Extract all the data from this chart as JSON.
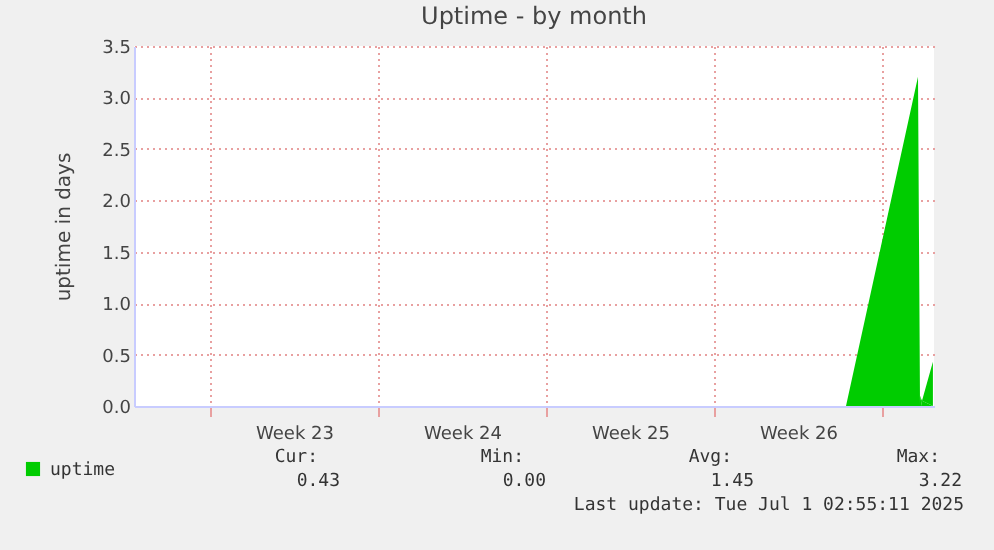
{
  "chart_data": {
    "type": "area",
    "title": "Uptime - by month",
    "ylabel": "uptime in days",
    "x": [
      "2025-06-27T12:00",
      "2025-06-30T12:00",
      "2025-06-30T14:00",
      "2025-06-30T16:00",
      "2025-07-01T02:55"
    ],
    "series": [
      {
        "name": "uptime",
        "color": "#00cc00",
        "values": [
          0,
          3.2,
          0.1,
          0.05,
          0.43
        ]
      }
    ],
    "xlim": [
      "2025-05-28T20:00",
      "2025-07-01T04:00"
    ],
    "xticks": [
      {
        "value": "2025-06-01T00:00",
        "label": null
      },
      {
        "value": "2025-06-04T12:00",
        "label": "Week 23"
      },
      {
        "value": "2025-06-08T00:00",
        "label": null
      },
      {
        "value": "2025-06-11T12:00",
        "label": "Week 24"
      },
      {
        "value": "2025-06-15T00:00",
        "label": null
      },
      {
        "value": "2025-06-18T12:00",
        "label": "Week 25"
      },
      {
        "value": "2025-06-22T00:00",
        "label": null
      },
      {
        "value": "2025-06-25T12:00",
        "label": "Week 26"
      },
      {
        "value": "2025-06-29T00:00",
        "label": null
      }
    ],
    "ylim": [
      0,
      3.5
    ],
    "yticks": [
      {
        "value": 0,
        "label": "0.0"
      },
      {
        "value": 0.5,
        "label": "0.5"
      },
      {
        "value": 1,
        "label": "1.0"
      },
      {
        "value": 1.5,
        "label": "1.5"
      },
      {
        "value": 2,
        "label": "2.0"
      },
      {
        "value": 2.5,
        "label": "2.5"
      },
      {
        "value": 3,
        "label": "3.0"
      },
      {
        "value": 3.5,
        "label": "3.5"
      }
    ],
    "grid": true,
    "legend": "bottom left",
    "annotations": [
      "Cur:",
      "Min:",
      "Avg:",
      "Max:",
      "0.43",
      "0.00",
      "1.45",
      "3.22",
      "Last update: Tue Jul  1 02:55:11 2025"
    ]
  }
}
